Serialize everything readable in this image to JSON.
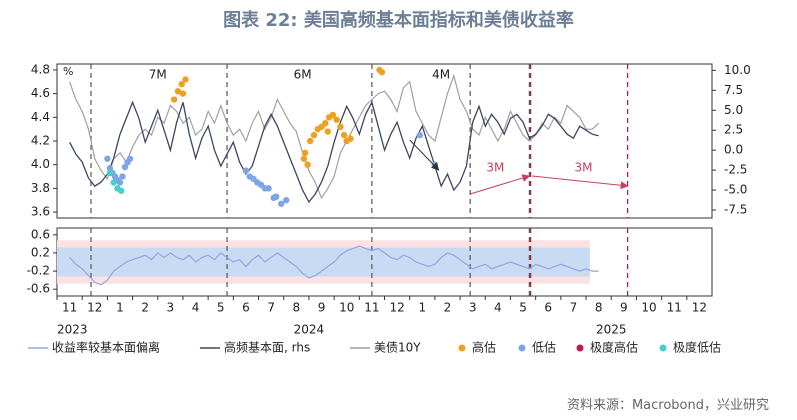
{
  "title": "图表 22: 美国高频基本面指标和美债收益率",
  "source": "资料来源：Macrobond，兴业研究",
  "colors": {
    "title": "#6d7f96",
    "bond_line": "#a0a0a0",
    "fundamental_line": "#3d4663",
    "deviation_line": "#8fa8e0",
    "band_blue": "#c9dbf3",
    "band_pink": "#fbe0e4",
    "high": "#f0a020",
    "low": "#7ea6e6",
    "extreme_high": "#c01848",
    "extreme_low": "#45d0cc",
    "dashed_grey": "#555555",
    "dashed_red": "#b0183c",
    "arrow_red": "#c8405a"
  },
  "chart_data": [
    {
      "type": "line",
      "panel": "top",
      "y_unit_left": "%",
      "yticks_left": [
        "4.8",
        "4.6",
        "4.4",
        "4.2",
        "4.0",
        "3.8",
        "3.6"
      ],
      "ylim_left": [
        3.55,
        4.85
      ],
      "yticks_right": [
        "10.0",
        "7.5",
        "5.0",
        "2.5",
        "0.0",
        "-2.5",
        "-5.0",
        "-7.5"
      ],
      "ylim_right": [
        -8.5,
        10.8
      ],
      "series": [
        {
          "name": "美债10Y",
          "axis": "left",
          "x": [
            0,
            0.5,
            1,
            1.5,
            2,
            2.5,
            3,
            3.5,
            4,
            4.5,
            5,
            5.5,
            6,
            6.5,
            7,
            7.5,
            8,
            8.5,
            9,
            9.5,
            10,
            10.5,
            11,
            11.5,
            12,
            12.5,
            13,
            13.5,
            14,
            14.5,
            15,
            15.5,
            16,
            16.5,
            17,
            17.5,
            18,
            18.5,
            19,
            19.5,
            20,
            20.5,
            21,
            21.5,
            22,
            22.5,
            23,
            23.5,
            24,
            24.5,
            25,
            25.5,
            26,
            26.5,
            27,
            27.5,
            28,
            28.5,
            29,
            29.5,
            30,
            30.5,
            31,
            31.5,
            32,
            32.5,
            33,
            33.5,
            34,
            34.5,
            35,
            35.5,
            36,
            36.5,
            37,
            37.5,
            38,
            38.5,
            39,
            39.5,
            40,
            40.5,
            41,
            41.5,
            42
          ],
          "values": [
            4.7,
            4.55,
            4.45,
            4.3,
            4.05,
            3.95,
            3.88,
            4.05,
            4.1,
            4.02,
            4.15,
            4.25,
            4.3,
            4.25,
            4.4,
            4.35,
            4.5,
            4.45,
            4.35,
            4.4,
            4.25,
            4.3,
            4.45,
            4.35,
            4.5,
            4.35,
            4.25,
            4.3,
            4.2,
            4.35,
            4.45,
            4.3,
            4.4,
            4.55,
            4.45,
            4.35,
            4.28,
            4.1,
            3.95,
            3.85,
            3.72,
            3.8,
            3.9,
            4.1,
            4.2,
            4.3,
            4.4,
            4.5,
            4.55,
            4.6,
            4.62,
            4.55,
            4.45,
            4.65,
            4.7,
            4.45,
            4.35,
            4.25,
            4.2,
            4.4,
            4.6,
            4.75,
            4.55,
            4.45,
            4.3,
            4.25,
            4.4,
            4.3,
            4.2,
            4.3,
            4.45,
            4.35,
            4.25,
            4.2,
            4.25,
            4.35,
            4.3,
            4.4,
            4.35,
            4.5,
            4.45,
            4.4,
            4.3,
            4.3,
            4.35
          ]
        },
        {
          "name": "高频基本面",
          "axis": "right",
          "x": [
            0,
            0.5,
            1,
            1.5,
            2,
            2.5,
            3,
            3.5,
            4,
            4.5,
            5,
            5.5,
            6,
            6.5,
            7,
            7.5,
            8,
            8.5,
            9,
            9.5,
            10,
            10.5,
            11,
            11.5,
            12,
            12.5,
            13,
            13.5,
            14,
            14.5,
            15,
            15.5,
            16,
            16.5,
            17,
            17.5,
            18,
            18.5,
            19,
            19.5,
            20,
            20.5,
            21,
            21.5,
            22,
            22.5,
            23,
            23.5,
            24,
            24.5,
            25,
            25.5,
            26,
            26.5,
            27,
            27.5,
            28,
            28.5,
            29,
            29.5,
            30,
            30.5,
            31,
            31.5,
            32,
            32.5,
            33,
            33.5,
            34,
            34.5,
            35,
            35.5,
            36,
            36.5,
            37,
            37.5,
            38,
            38.5,
            39,
            39.5,
            40,
            40.5,
            41,
            41.5,
            42
          ],
          "values": [
            1.0,
            -0.5,
            -1.5,
            -3.5,
            -4.5,
            -4.0,
            -3.0,
            -1.0,
            2.0,
            4.0,
            6.0,
            4.0,
            1.0,
            3.0,
            5.0,
            2.5,
            0.0,
            3.5,
            6.0,
            2.0,
            -1.0,
            1.5,
            3.0,
            0.0,
            -2.0,
            -0.5,
            1.0,
            -1.5,
            -3.0,
            -2.0,
            0.5,
            3.0,
            4.5,
            3.0,
            1.0,
            -1.0,
            -3.0,
            -5.0,
            -6.5,
            -5.5,
            -4.0,
            -2.0,
            1.0,
            3.5,
            5.5,
            4.0,
            2.0,
            4.5,
            6.0,
            3.0,
            0.0,
            2.0,
            3.5,
            1.0,
            -1.0,
            1.5,
            3.0,
            0.5,
            -2.0,
            -4.5,
            -3.0,
            -5.0,
            -4.0,
            -2.0,
            3.5,
            5.5,
            3.0,
            4.5,
            3.5,
            2.0,
            4.0,
            4.5,
            3.5,
            1.5,
            2.0,
            3.0,
            4.5,
            4.0,
            3.0,
            2.0,
            1.5,
            3.0,
            2.5,
            2.0,
            1.8
          ]
        }
      ],
      "scatter": [
        {
          "name": "高估",
          "points": [
            [
              8.3,
              4.55
            ],
            [
              8.6,
              4.62
            ],
            [
              8.9,
              4.68
            ],
            [
              9.2,
              4.72
            ],
            [
              9.0,
              4.6
            ],
            [
              18.6,
              4.05
            ],
            [
              18.7,
              4.1
            ],
            [
              18.9,
              4.0
            ],
            [
              19.1,
              4.2
            ],
            [
              19.4,
              4.25
            ],
            [
              19.7,
              4.3
            ],
            [
              20.0,
              4.32
            ],
            [
              20.3,
              4.35
            ],
            [
              20.6,
              4.4
            ],
            [
              20.9,
              4.42
            ],
            [
              21.2,
              4.38
            ],
            [
              21.5,
              4.32
            ],
            [
              21.8,
              4.25
            ],
            [
              22.0,
              4.2
            ],
            [
              22.3,
              4.22
            ],
            [
              20.5,
              4.28
            ],
            [
              24.6,
              4.8
            ],
            [
              24.8,
              4.78
            ]
          ]
        },
        {
          "name": "低估",
          "points": [
            [
              3.0,
              4.05
            ],
            [
              3.2,
              3.97
            ],
            [
              3.4,
              3.93
            ],
            [
              3.6,
              3.9
            ],
            [
              3.8,
              3.87
            ],
            [
              4.0,
              3.85
            ],
            [
              4.2,
              3.9
            ],
            [
              4.4,
              3.98
            ],
            [
              4.6,
              4.02
            ],
            [
              4.8,
              4.05
            ],
            [
              14.0,
              3.95
            ],
            [
              14.3,
              3.9
            ],
            [
              14.6,
              3.88
            ],
            [
              14.9,
              3.85
            ],
            [
              15.2,
              3.83
            ],
            [
              15.5,
              3.8
            ],
            [
              15.8,
              3.8
            ],
            [
              16.2,
              3.72
            ],
            [
              16.4,
              3.73
            ],
            [
              16.8,
              3.67
            ],
            [
              17.2,
              3.7
            ],
            [
              27.8,
              4.25
            ],
            [
              29.0,
              4.0
            ]
          ]
        },
        {
          "name": "极度高估",
          "points": []
        },
        {
          "name": "极度低估",
          "points": [
            [
              3.2,
              3.93
            ],
            [
              3.5,
              3.85
            ],
            [
              3.8,
              3.8
            ],
            [
              4.1,
              3.78
            ]
          ]
        }
      ],
      "regime_labels": [
        "7M",
        "6M",
        "4M"
      ],
      "arrow_labels": [
        "3M",
        "3M"
      ]
    },
    {
      "type": "area",
      "panel": "bottom",
      "yticks": [
        "0.6",
        "0.2",
        "-0.2",
        "-0.6"
      ],
      "ylim": [
        -0.75,
        0.75
      ],
      "series": [
        {
          "name": "收益率较基本面偏离",
          "x": [
            0,
            0.5,
            1,
            1.5,
            2,
            2.5,
            3,
            3.5,
            4,
            4.5,
            5,
            5.5,
            6,
            6.5,
            7,
            7.5,
            8,
            8.5,
            9,
            9.5,
            10,
            10.5,
            11,
            11.5,
            12,
            12.5,
            13,
            13.5,
            14,
            14.5,
            15,
            15.5,
            16,
            16.5,
            17,
            17.5,
            18,
            18.5,
            19,
            19.5,
            20,
            20.5,
            21,
            21.5,
            22,
            22.5,
            23,
            23.5,
            24,
            24.5,
            25,
            25.5,
            26,
            26.5,
            27,
            27.5,
            28,
            28.5,
            29,
            29.5,
            30,
            30.5,
            31,
            31.5,
            32,
            32.5,
            33,
            33.5,
            34,
            34.5,
            35,
            35.5,
            36,
            36.5,
            37,
            37.5,
            38,
            38.5,
            39,
            39.5,
            40,
            40.5,
            41,
            41.5,
            42
          ],
          "values": [
            0.1,
            -0.05,
            -0.15,
            -0.3,
            -0.45,
            -0.5,
            -0.4,
            -0.2,
            -0.1,
            0.0,
            0.05,
            0.1,
            0.15,
            0.05,
            0.2,
            0.1,
            0.2,
            0.1,
            0.05,
            0.15,
            0.0,
            0.1,
            0.15,
            0.05,
            0.2,
            0.1,
            0.0,
            0.05,
            -0.1,
            0.05,
            0.15,
            0.0,
            0.1,
            0.2,
            0.1,
            0.0,
            -0.1,
            -0.25,
            -0.35,
            -0.3,
            -0.2,
            -0.1,
            0.0,
            0.15,
            0.25,
            0.3,
            0.35,
            0.3,
            0.25,
            0.3,
            0.2,
            0.1,
            0.05,
            0.15,
            0.1,
            0.0,
            -0.05,
            -0.1,
            -0.05,
            0.1,
            0.2,
            0.15,
            0.05,
            -0.05,
            -0.15,
            -0.1,
            -0.05,
            -0.15,
            -0.1,
            -0.05,
            0.0,
            -0.05,
            -0.1,
            -0.15,
            -0.05,
            -0.1,
            -0.15,
            -0.1,
            -0.05,
            -0.1,
            -0.15,
            -0.2,
            -0.15,
            -0.2,
            -0.2
          ]
        }
      ]
    }
  ],
  "x_axis": {
    "month_labels": [
      "11",
      "12",
      "1",
      "2",
      "3",
      "4",
      "5",
      "6",
      "7",
      "8",
      "9",
      "10",
      "11",
      "12",
      "1",
      "2",
      "3",
      "4",
      "5",
      "6",
      "7",
      "8",
      "9",
      "10",
      "11",
      "12"
    ],
    "year_labels": [
      "2023",
      "2024",
      "2025"
    ]
  },
  "legend": {
    "items": [
      {
        "label": "收益率较基本面偏离",
        "marker": "line",
        "color_key": "deviation_line"
      },
      {
        "label": "高频基本面, rhs",
        "marker": "line",
        "color_key": "fundamental_line"
      },
      {
        "label": "美债10Y",
        "marker": "line",
        "color_key": "bond_line"
      },
      {
        "label": "高估",
        "marker": "dot",
        "color_key": "high"
      },
      {
        "label": "低估",
        "marker": "dot",
        "color_key": "low"
      },
      {
        "label": "极度高估",
        "marker": "dot",
        "color_key": "extreme_high"
      },
      {
        "label": "极度低估",
        "marker": "dot",
        "color_key": "extreme_low"
      }
    ]
  }
}
